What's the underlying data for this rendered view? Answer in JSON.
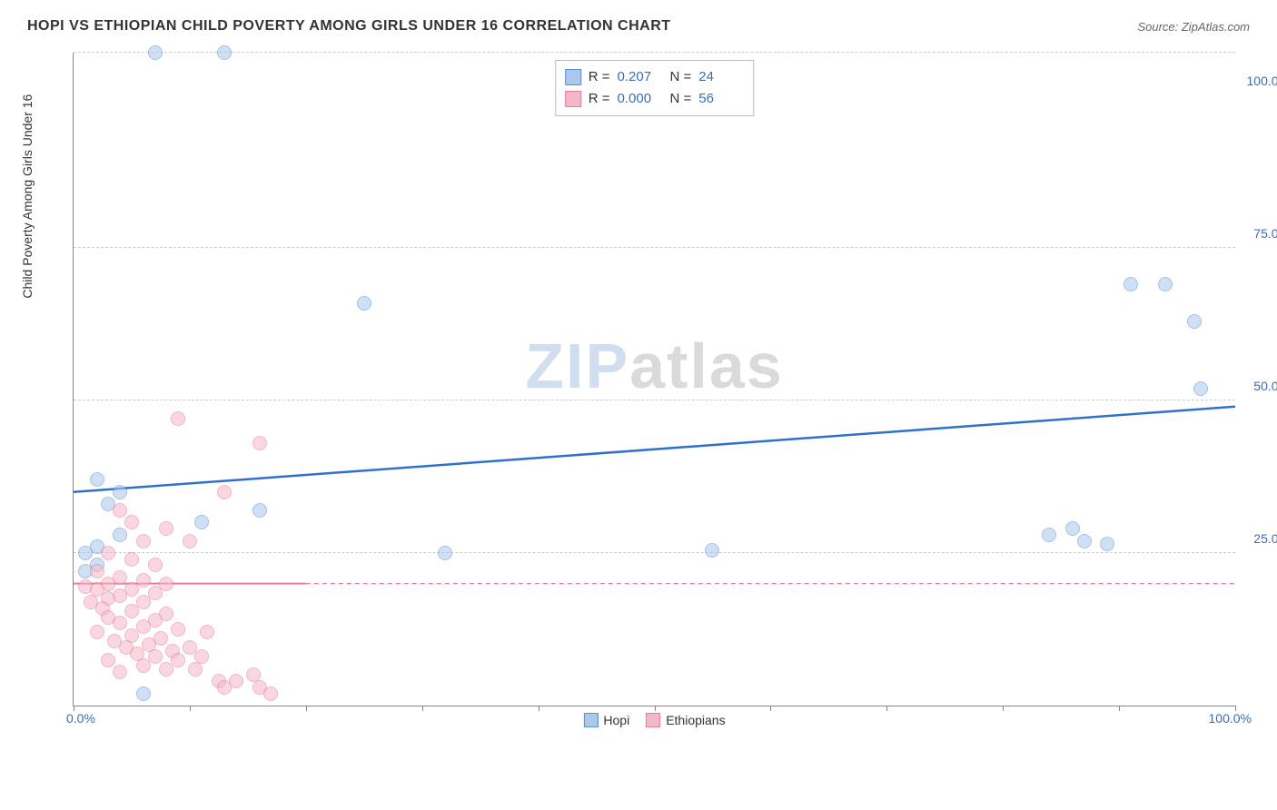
{
  "title": "HOPI VS ETHIOPIAN CHILD POVERTY AMONG GIRLS UNDER 16 CORRELATION CHART",
  "source": "Source: ZipAtlas.com",
  "ylabel": "Child Poverty Among Girls Under 16",
  "watermark": {
    "part1": "ZIP",
    "part2": "atlas"
  },
  "chart": {
    "type": "scatter",
    "background_color": "#ffffff",
    "grid_color": "#cccccc",
    "axis_color": "#888888",
    "xlim": [
      0,
      100
    ],
    "ylim": [
      0,
      107
    ],
    "y_gridlines": [
      25,
      50,
      75,
      107
    ],
    "x_vticks": [
      0,
      10,
      20,
      30,
      40,
      50,
      60,
      70,
      80,
      90,
      100
    ],
    "y_tick_labels": [
      {
        "y": 25,
        "label": "25.0%"
      },
      {
        "y": 50,
        "label": "50.0%"
      },
      {
        "y": 75,
        "label": "75.0%"
      },
      {
        "y": 100,
        "label": "100.0%"
      }
    ],
    "x_tick_labels": {
      "left": "0.0%",
      "right": "100.0%"
    },
    "marker_radius": 8,
    "marker_opacity": 0.55,
    "series": [
      {
        "name": "Hopi",
        "fill": "#a9c8ec",
        "stroke": "#5b8fd6",
        "r_value": "0.207",
        "n_value": "24",
        "trend": {
          "y_at_x0": 35,
          "y_at_x100": 49,
          "color": "#2f6fd0",
          "width": 2.5,
          "dashed": false
        },
        "points": [
          {
            "x": 7,
            "y": 107
          },
          {
            "x": 13,
            "y": 107
          },
          {
            "x": 2,
            "y": 37
          },
          {
            "x": 4,
            "y": 35
          },
          {
            "x": 3,
            "y": 33
          },
          {
            "x": 4,
            "y": 28
          },
          {
            "x": 16,
            "y": 32
          },
          {
            "x": 11,
            "y": 30
          },
          {
            "x": 2,
            "y": 26
          },
          {
            "x": 2,
            "y": 23
          },
          {
            "x": 1,
            "y": 22
          },
          {
            "x": 6,
            "y": 2
          },
          {
            "x": 1,
            "y": 25
          },
          {
            "x": 32,
            "y": 25
          },
          {
            "x": 55,
            "y": 25.5
          },
          {
            "x": 25,
            "y": 66
          },
          {
            "x": 84,
            "y": 28
          },
          {
            "x": 86,
            "y": 29
          },
          {
            "x": 87,
            "y": 27
          },
          {
            "x": 89,
            "y": 26.5
          },
          {
            "x": 91,
            "y": 69
          },
          {
            "x": 94,
            "y": 69
          },
          {
            "x": 96.5,
            "y": 63
          },
          {
            "x": 97,
            "y": 52
          }
        ]
      },
      {
        "name": "Ethiopians",
        "fill": "#f5b8c8",
        "stroke": "#e77a9a",
        "r_value": "0.000",
        "n_value": "56",
        "trend": {
          "y_at_x0": 20,
          "y_at_x100": 20,
          "color": "#e77a9a",
          "width": 2,
          "dashed": true,
          "solid_until_x": 20
        },
        "points": [
          {
            "x": 9,
            "y": 47
          },
          {
            "x": 16,
            "y": 43
          },
          {
            "x": 13,
            "y": 35
          },
          {
            "x": 4,
            "y": 32
          },
          {
            "x": 5,
            "y": 30
          },
          {
            "x": 8,
            "y": 29
          },
          {
            "x": 6,
            "y": 27
          },
          {
            "x": 10,
            "y": 27
          },
          {
            "x": 3,
            "y": 25
          },
          {
            "x": 5,
            "y": 24
          },
          {
            "x": 7,
            "y": 23
          },
          {
            "x": 2,
            "y": 22
          },
          {
            "x": 4,
            "y": 21
          },
          {
            "x": 6,
            "y": 20.5
          },
          {
            "x": 8,
            "y": 20
          },
          {
            "x": 3,
            "y": 20
          },
          {
            "x": 1,
            "y": 19.5
          },
          {
            "x": 2,
            "y": 19
          },
          {
            "x": 5,
            "y": 19
          },
          {
            "x": 7,
            "y": 18.5
          },
          {
            "x": 4,
            "y": 18
          },
          {
            "x": 3,
            "y": 17.5
          },
          {
            "x": 6,
            "y": 17
          },
          {
            "x": 1.5,
            "y": 17
          },
          {
            "x": 2.5,
            "y": 16
          },
          {
            "x": 5,
            "y": 15.5
          },
          {
            "x": 8,
            "y": 15
          },
          {
            "x": 3,
            "y": 14.5
          },
          {
            "x": 7,
            "y": 14
          },
          {
            "x": 4,
            "y": 13.5
          },
          {
            "x": 6,
            "y": 13
          },
          {
            "x": 9,
            "y": 12.5
          },
          {
            "x": 2,
            "y": 12
          },
          {
            "x": 5,
            "y": 11.5
          },
          {
            "x": 7.5,
            "y": 11
          },
          {
            "x": 3.5,
            "y": 10.5
          },
          {
            "x": 6.5,
            "y": 10
          },
          {
            "x": 4.5,
            "y": 9.5
          },
          {
            "x": 8.5,
            "y": 9
          },
          {
            "x": 10,
            "y": 9.5
          },
          {
            "x": 5.5,
            "y": 8.5
          },
          {
            "x": 7,
            "y": 8
          },
          {
            "x": 3,
            "y": 7.5
          },
          {
            "x": 9,
            "y": 7.5
          },
          {
            "x": 11,
            "y": 8
          },
          {
            "x": 6,
            "y": 6.5
          },
          {
            "x": 8,
            "y": 6
          },
          {
            "x": 10.5,
            "y": 6
          },
          {
            "x": 4,
            "y": 5.5
          },
          {
            "x": 12.5,
            "y": 4
          },
          {
            "x": 14,
            "y": 4
          },
          {
            "x": 15.5,
            "y": 5
          },
          {
            "x": 13,
            "y": 3
          },
          {
            "x": 16,
            "y": 3
          },
          {
            "x": 17,
            "y": 2
          },
          {
            "x": 11.5,
            "y": 12
          }
        ]
      }
    ]
  },
  "legend_labels": {
    "r": "R =",
    "n": "N ="
  },
  "series_legend": [
    {
      "label": "Hopi",
      "fill": "#a9c8ec",
      "stroke": "#5b8fd6"
    },
    {
      "label": "Ethiopians",
      "fill": "#f5b8c8",
      "stroke": "#e77a9a"
    }
  ]
}
